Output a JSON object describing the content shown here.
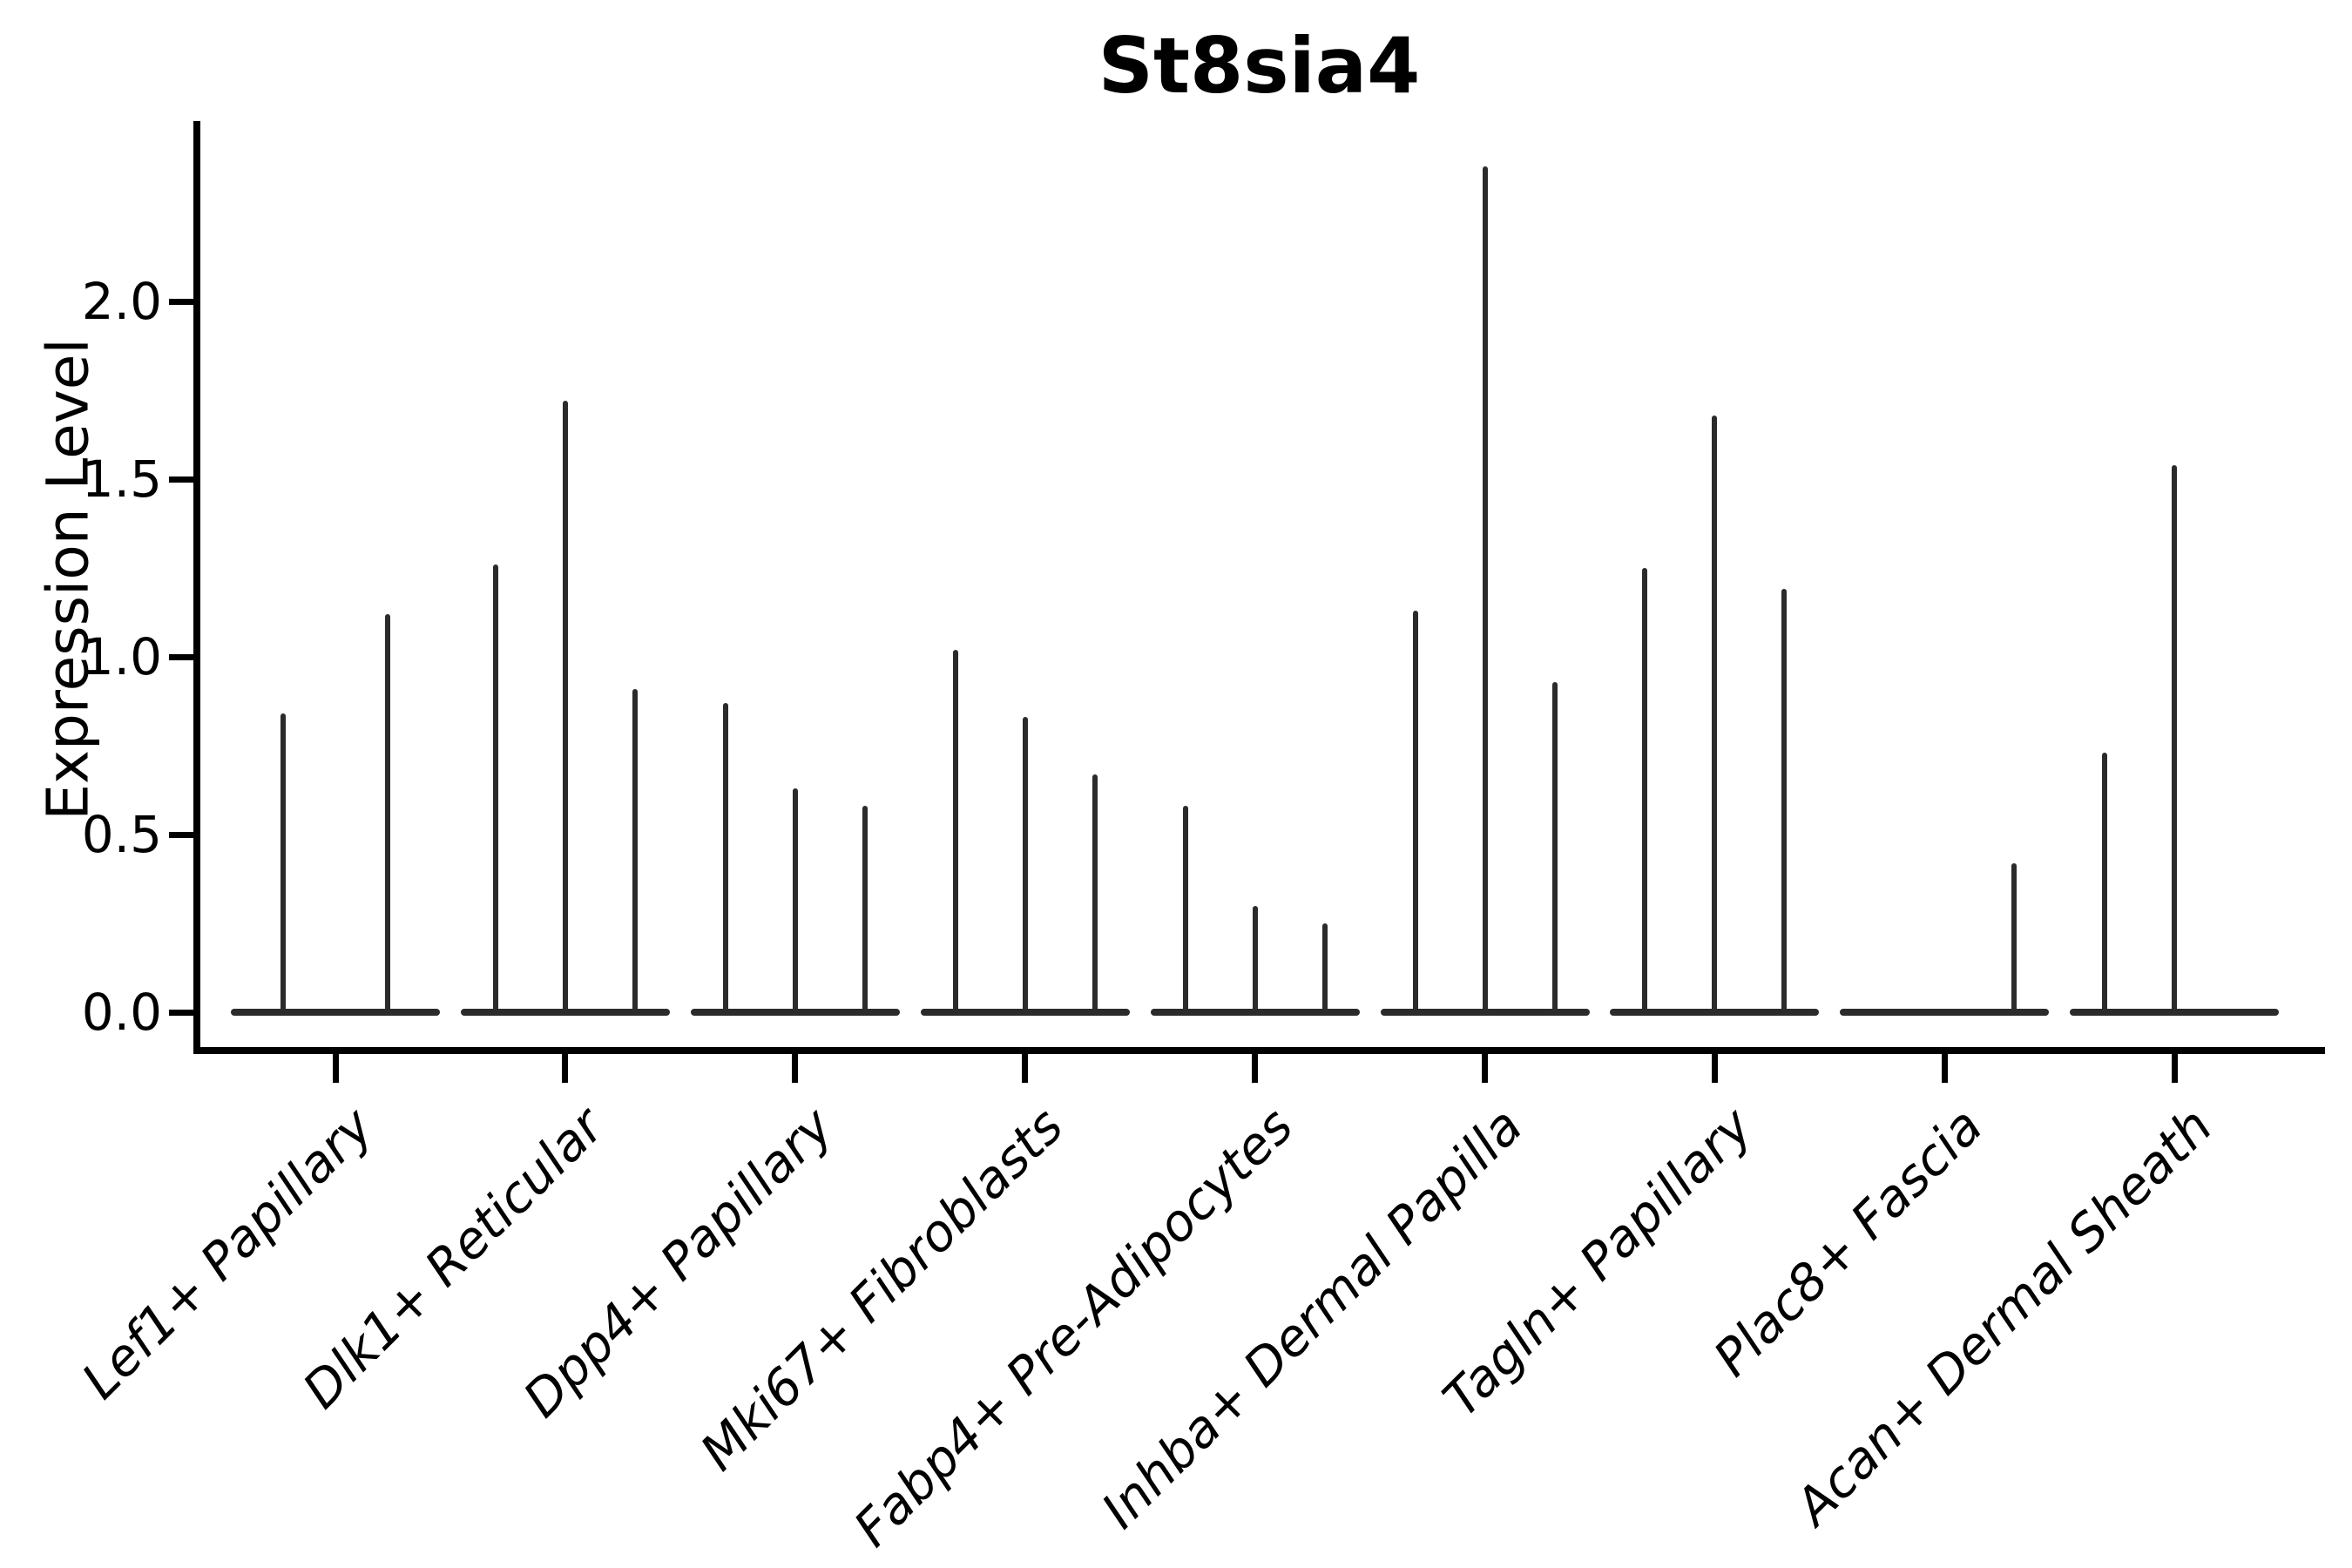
{
  "colors": {
    "ink": "#2b2b2b",
    "axis": "#000000",
    "background": "#ffffff"
  },
  "chart_data": {
    "type": "violin",
    "title": "St8sia4",
    "ylabel": "Expression Level",
    "xlabel": "",
    "grid": false,
    "legend_position": "none",
    "ylim": [
      -0.1,
      2.5
    ],
    "ytick_values": [
      0.0,
      0.5,
      1.0,
      1.5,
      2.0
    ],
    "ytick_labels": [
      "0.0",
      "0.5",
      "1.0",
      "1.5",
      "2.0"
    ],
    "categories": [
      "Lef1+ Papillary",
      "Dlk1+ Reticular",
      "Dpp4+ Papillary",
      "Mki67+ Fibroblasts",
      "Fabp4+ Pre-Adipocytes",
      "Inhba+ Dermal Papilla",
      "Tagln+ Papillary",
      "Plac8+ Fascia",
      "Acan+ Dermal Sheath"
    ],
    "groups": [
      {
        "category": "Lef1+ Papillary",
        "violin_max_expression": [
          0.84,
          1.12
        ]
      },
      {
        "category": "Dlk1+ Reticular",
        "violin_max_expression": [
          1.26,
          1.72,
          0.91
        ]
      },
      {
        "category": "Dpp4+ Papillary",
        "violin_max_expression": [
          0.87,
          0.63,
          0.58
        ]
      },
      {
        "category": "Mki67+ Fibroblasts",
        "violin_max_expression": [
          1.02,
          0.83,
          0.67
        ]
      },
      {
        "category": "Fabp4+ Pre-Adipocytes",
        "violin_max_expression": [
          0.58,
          0.3,
          0.25
        ]
      },
      {
        "category": "Inhba+ Dermal Papilla",
        "violin_max_expression": [
          1.13,
          2.38,
          0.93
        ]
      },
      {
        "category": "Tagln+ Papillary",
        "violin_max_expression": [
          1.25,
          1.68,
          1.19
        ]
      },
      {
        "category": "Plac8+ Fascia",
        "violin_max_expression": [
          0,
          0,
          0.42
        ]
      },
      {
        "category": "Acan+ Dermal Sheath",
        "violin_max_expression": [
          0.73,
          1.54,
          0
        ]
      }
    ]
  }
}
